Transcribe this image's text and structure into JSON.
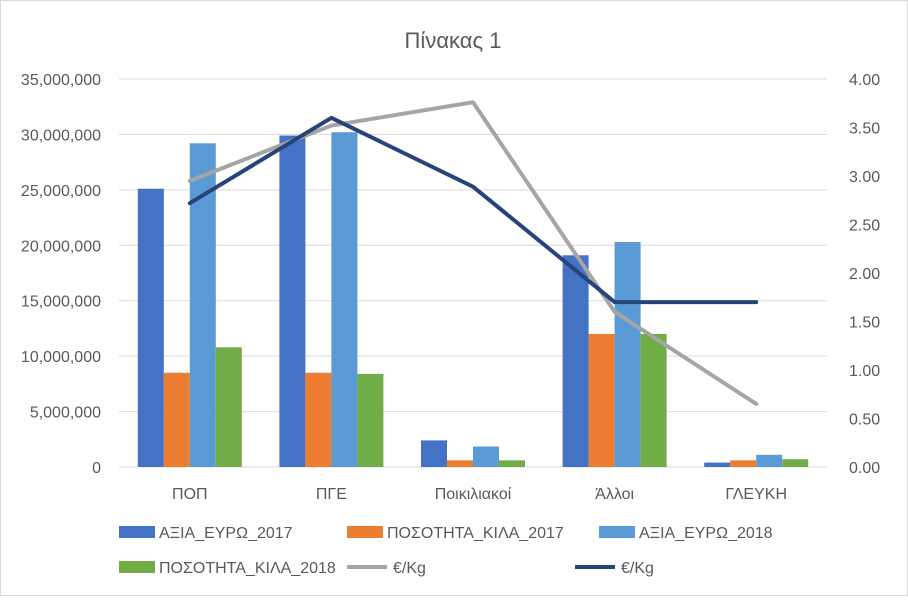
{
  "chart_data": {
    "type": "bar",
    "title": "Πίνακας 1",
    "categories": [
      "ΠΟΠ",
      "ΠΓΕ",
      "Ποικιλιακοί",
      "Άλλοι",
      "ΓΛΕΥΚΗ"
    ],
    "series": [
      {
        "name": "ΑΞΙΑ_ΕΥΡΩ_2017",
        "type": "bar",
        "axis": "left",
        "color": "#4472c4",
        "values": [
          25100000,
          29900000,
          2400000,
          19100000,
          400000
        ]
      },
      {
        "name": "ΠΟΣΟΤΗΤΑ_ΚΙΛΑ_2017",
        "type": "bar",
        "axis": "left",
        "color": "#ed7d31",
        "values": [
          8500000,
          8500000,
          600000,
          12000000,
          600000
        ]
      },
      {
        "name": "ΑΞΙΑ_ΕΥΡΩ_2018",
        "type": "bar",
        "axis": "left",
        "color": "#5b9bd5",
        "values": [
          29200000,
          30200000,
          1850000,
          20300000,
          1100000
        ]
      },
      {
        "name": "ΠΟΣΟΤΗΤΑ_ΚΙΛΑ_2018",
        "type": "bar",
        "axis": "left",
        "color": "#70ad47",
        "values": [
          10800000,
          8400000,
          600000,
          12000000,
          700000
        ]
      },
      {
        "name": "€/Kg",
        "type": "line",
        "axis": "right",
        "color": "#a5a5a5",
        "values": [
          2.95,
          3.52,
          3.76,
          1.6,
          0.65
        ]
      },
      {
        "name": "€/Kg",
        "type": "line",
        "axis": "right",
        "color": "#264478",
        "values": [
          2.72,
          3.6,
          2.89,
          1.7,
          1.7
        ]
      }
    ],
    "y_left": {
      "ylim": [
        0,
        35000000
      ],
      "ticks": [
        "0",
        "5,000,000",
        "10,000,000",
        "15,000,000",
        "20,000,000",
        "25,000,000",
        "30,000,000",
        "35,000,000"
      ]
    },
    "y_right": {
      "ylim": [
        0,
        4
      ],
      "ticks": [
        "0.00",
        "0.50",
        "1.00",
        "1.50",
        "2.00",
        "2.50",
        "3.00",
        "3.50",
        "4.00"
      ]
    },
    "grid": true,
    "legend": "bottom"
  }
}
